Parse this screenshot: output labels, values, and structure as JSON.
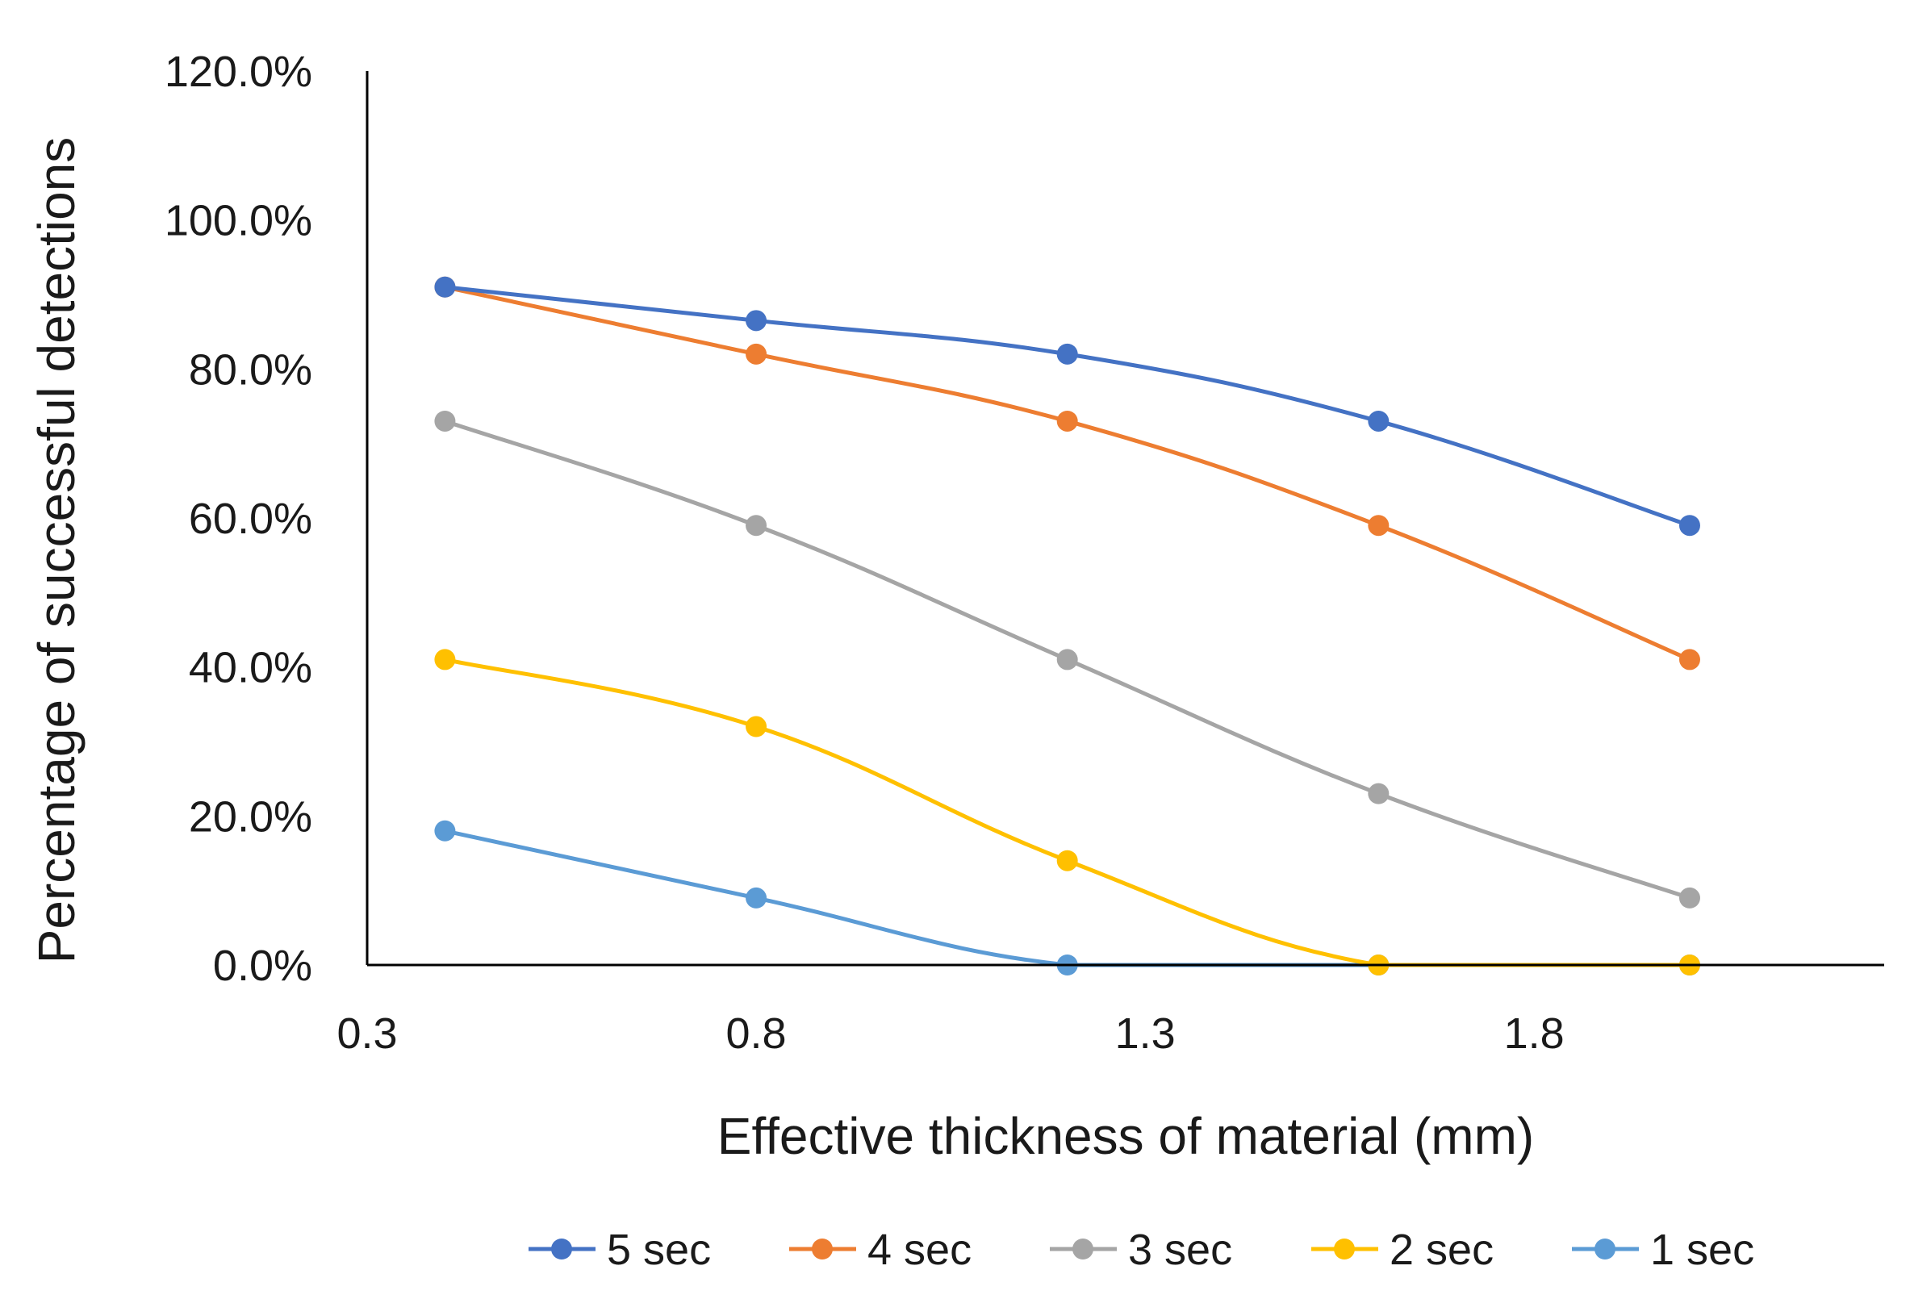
{
  "chart_data": {
    "type": "line",
    "smooth": true,
    "title": "",
    "xlabel": "Effective thickness of material (mm)",
    "ylabel": "Percentage of successful detections",
    "xlim": [
      0.3,
      2.25
    ],
    "ylim": [
      0,
      1.2
    ],
    "x_ticks": [
      0.3,
      0.8,
      1.3,
      1.8
    ],
    "x_tick_labels": [
      "0.3",
      "0.8",
      "1.3",
      "1.8"
    ],
    "y_ticks": [
      0,
      0.2,
      0.4,
      0.6,
      0.8,
      1.0,
      1.2
    ],
    "y_tick_labels": [
      "0.0%",
      "20.0%",
      "40.0%",
      "60.0%",
      "80.0%",
      "100.0%",
      "120.0%"
    ],
    "grid": false,
    "legend_position": "bottom",
    "x": [
      0.4,
      0.8,
      1.2,
      1.6,
      2.0
    ],
    "series": [
      {
        "name": "5 sec",
        "color": "#4472C4",
        "values": [
          0.91,
          0.865,
          0.82,
          0.73,
          0.59
        ]
      },
      {
        "name": "4 sec",
        "color": "#ED7D31",
        "values": [
          0.91,
          0.82,
          0.73,
          0.59,
          0.41
        ]
      },
      {
        "name": "3 sec",
        "color": "#A5A5A5",
        "values": [
          0.73,
          0.59,
          0.41,
          0.23,
          0.09
        ]
      },
      {
        "name": "2 sec",
        "color": "#FFC000",
        "values": [
          0.41,
          0.32,
          0.14,
          0.0,
          0.0
        ]
      },
      {
        "name": "1 sec",
        "color": "#5B9BD5",
        "values": [
          0.18,
          0.09,
          0.0,
          0.0,
          0.0
        ]
      }
    ]
  }
}
